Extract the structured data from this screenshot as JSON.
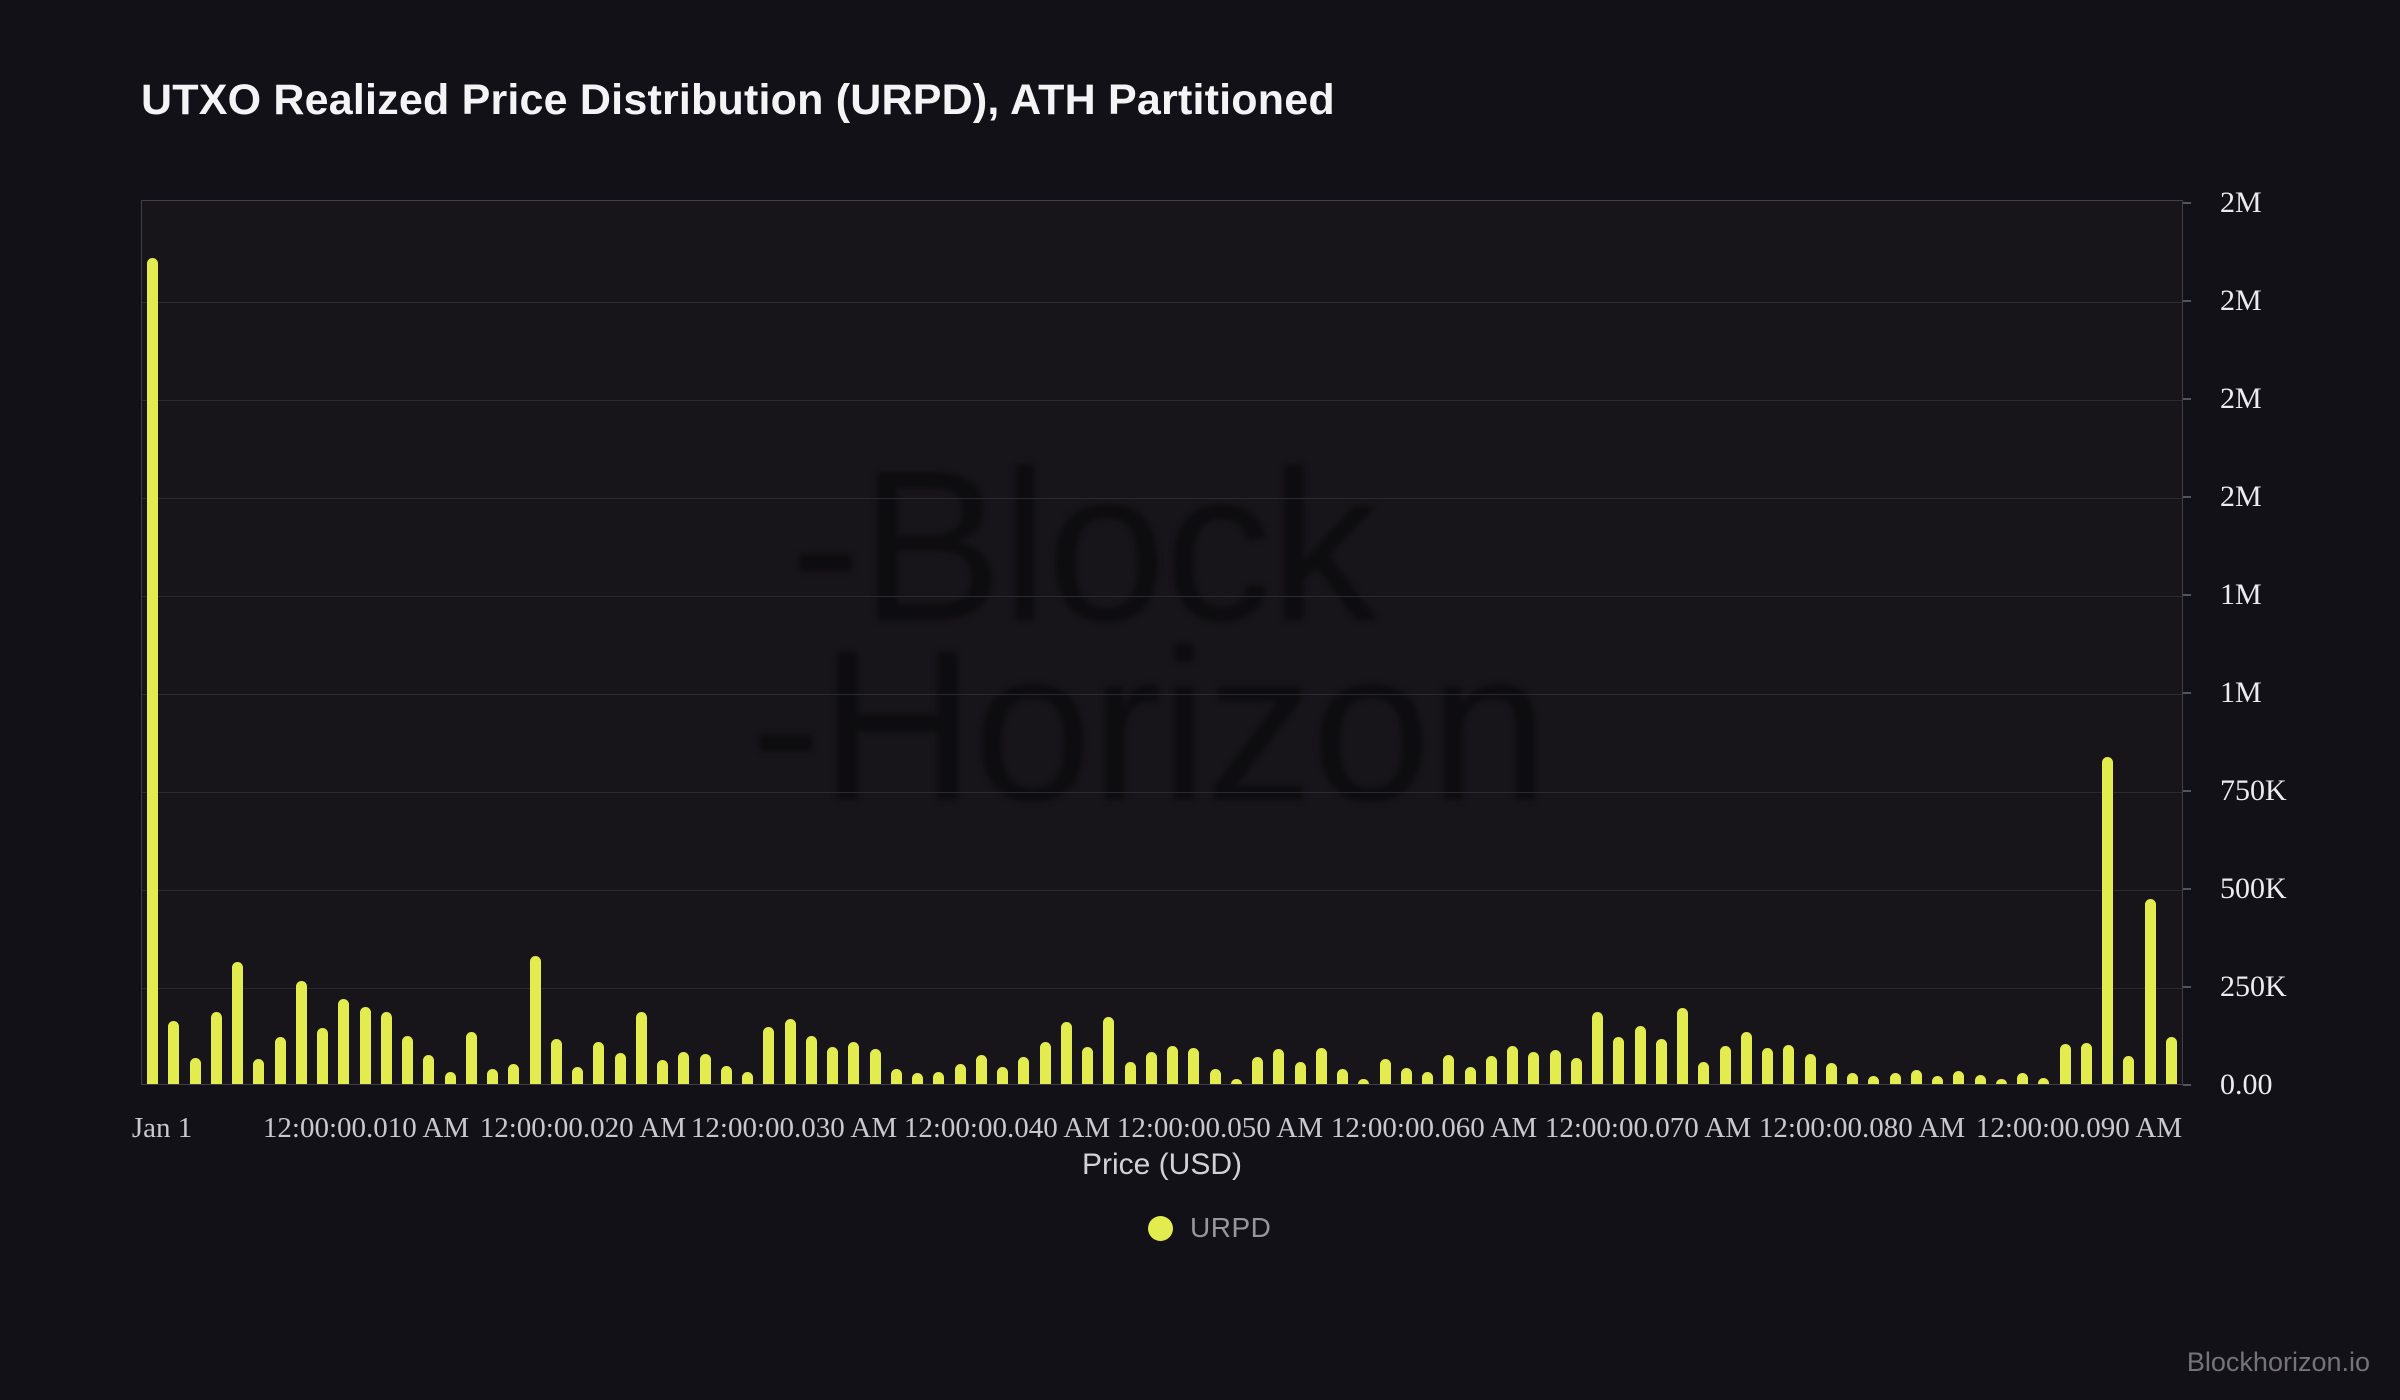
{
  "page": {
    "footer": "Blockhorizon.io",
    "watermark": {
      "line1": "-Block",
      "line2": "-Horizon"
    }
  },
  "chart_data": {
    "type": "bar",
    "title": "UTXO Realized Price Distribution (URPD), ATH Partitioned",
    "xlabel": "Price (USD)",
    "ylabel": "",
    "legend": [
      {
        "label": "URPD",
        "color": "#e3ec4e"
      }
    ],
    "legend_position": "bottom-center",
    "grid": true,
    "background_color": "#131118",
    "bar_color": "#e3ec4e",
    "y_axis": {
      "min": 0,
      "max": 2250000,
      "tick_interval": 250000,
      "tick_labels_top_to_bottom": [
        "2M",
        "2M",
        "2M",
        "2M",
        "1M",
        "1M",
        "750K",
        "500K",
        "250K",
        "0.00"
      ]
    },
    "x_axis": {
      "tick_labels": [
        "Jan 1",
        "12:00:00.010 AM",
        "12:00:00.020 AM",
        "12:00:00.030 AM",
        "12:00:00.040 AM",
        "12:00:00.050 AM",
        "12:00:00.060 AM",
        "12:00:00.070 AM",
        "12:00:00.080 AM",
        "12:00:00.090 AM"
      ]
    },
    "series": [
      {
        "name": "URPD",
        "values": [
          2107000,
          161000,
          66000,
          183000,
          311000,
          64000,
          120000,
          263000,
          143000,
          217000,
          196000,
          183000,
          122000,
          74000,
          31000,
          133000,
          38000,
          51000,
          327000,
          115000,
          43000,
          107000,
          79000,
          184000,
          61000,
          82000,
          77000,
          46000,
          31000,
          145000,
          166000,
          122000,
          94000,
          107000,
          89000,
          38000,
          28000,
          31000,
          51000,
          74000,
          43000,
          69000,
          107000,
          158000,
          94000,
          171000,
          56000,
          82000,
          97000,
          92000,
          38000,
          13000,
          69000,
          89000,
          56000,
          92000,
          38000,
          13000,
          64000,
          41000,
          31000,
          74000,
          43000,
          71000,
          97000,
          82000,
          87000,
          66000,
          184000,
          120000,
          148000,
          115000,
          194000,
          56000,
          97000,
          133000,
          92000,
          99000,
          77000,
          54000,
          28000,
          20000,
          28000,
          36000,
          20000,
          33000,
          23000,
          13000,
          28000,
          15000,
          102000,
          105000,
          834000,
          71000,
          472000,
          120000
        ]
      }
    ]
  }
}
